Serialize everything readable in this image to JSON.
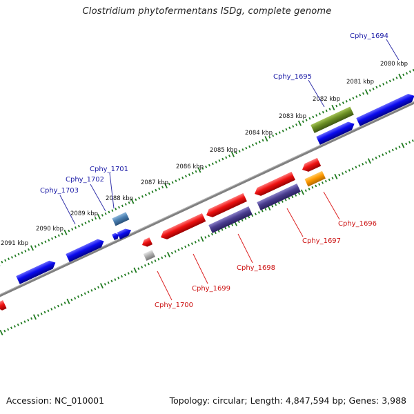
{
  "title": "Clostridium phytofermentans ISDg, complete genome",
  "footer": {
    "accession": "Accession: NC_010001",
    "summary": "Topology: circular; Length: 4,847,594 bp; Genes: 3,988"
  },
  "kbp_ticks": [
    "2080 kbp",
    "2081 kbp",
    "2082 kbp",
    "2083 kbp",
    "2084 kbp",
    "2085 kbp",
    "2086 kbp",
    "2087 kbp",
    "2088 kbp",
    "2089 kbp",
    "2090 kbp",
    "2091 kbp"
  ],
  "top_genes": [
    "Cphy_1694",
    "Cphy_1695",
    "Cphy_1701",
    "Cphy_1702",
    "Cphy_1703"
  ],
  "bottom_genes": [
    "Cphy_1696",
    "Cphy_1697",
    "Cphy_1698",
    "Cphy_1699",
    "Cphy_1700"
  ],
  "colors": {
    "backbone": "#808080",
    "tick_green": "#1f7a1f",
    "forward_gene": "#0a0aee",
    "reverse_gene": "#ee1111",
    "purple_gene": "#4a3d8f",
    "olive_gene": "#6b8e23",
    "orange_gene": "#ff9900",
    "steel_gene": "#4a7fb0",
    "gray_gene": "#b0b0b0",
    "top_label": "#1a1aa6",
    "bottom_label": "#cc1111"
  }
}
